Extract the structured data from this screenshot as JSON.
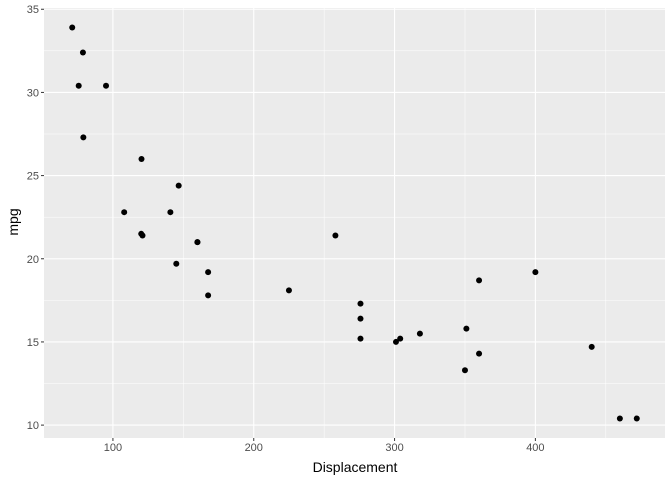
{
  "chart_data": {
    "type": "scatter",
    "title": "",
    "xlabel": "Displacement",
    "ylabel": "mpg",
    "xlim": [
      51.055,
      492.045
    ],
    "ylim": [
      9.225,
      35.075
    ],
    "x_ticks": [
      100,
      200,
      300,
      400
    ],
    "y_ticks": [
      10,
      15,
      20,
      25,
      30,
      35
    ],
    "grid": true,
    "panel_background": "#EBEBEB",
    "grid_color": "#FFFFFF",
    "point_color": "#000000",
    "points": [
      {
        "x": 160,
        "y": 21.0
      },
      {
        "x": 160,
        "y": 21.0
      },
      {
        "x": 108,
        "y": 22.8
      },
      {
        "x": 258,
        "y": 21.4
      },
      {
        "x": 360,
        "y": 18.7
      },
      {
        "x": 225,
        "y": 18.1
      },
      {
        "x": 360,
        "y": 14.3
      },
      {
        "x": 146.7,
        "y": 24.4
      },
      {
        "x": 140.8,
        "y": 22.8
      },
      {
        "x": 167.6,
        "y": 19.2
      },
      {
        "x": 167.6,
        "y": 17.8
      },
      {
        "x": 275.8,
        "y": 16.4
      },
      {
        "x": 275.8,
        "y": 17.3
      },
      {
        "x": 275.8,
        "y": 15.2
      },
      {
        "x": 472,
        "y": 10.4
      },
      {
        "x": 460,
        "y": 10.4
      },
      {
        "x": 440,
        "y": 14.7
      },
      {
        "x": 78.7,
        "y": 32.4
      },
      {
        "x": 75.7,
        "y": 30.4
      },
      {
        "x": 71.1,
        "y": 33.9
      },
      {
        "x": 120.1,
        "y": 21.5
      },
      {
        "x": 318,
        "y": 15.5
      },
      {
        "x": 304,
        "y": 15.2
      },
      {
        "x": 350,
        "y": 13.3
      },
      {
        "x": 400,
        "y": 19.2
      },
      {
        "x": 79,
        "y": 27.3
      },
      {
        "x": 120.3,
        "y": 26.0
      },
      {
        "x": 95.1,
        "y": 30.4
      },
      {
        "x": 351,
        "y": 15.8
      },
      {
        "x": 145,
        "y": 19.7
      },
      {
        "x": 301,
        "y": 15.0
      },
      {
        "x": 121,
        "y": 21.4
      }
    ]
  }
}
